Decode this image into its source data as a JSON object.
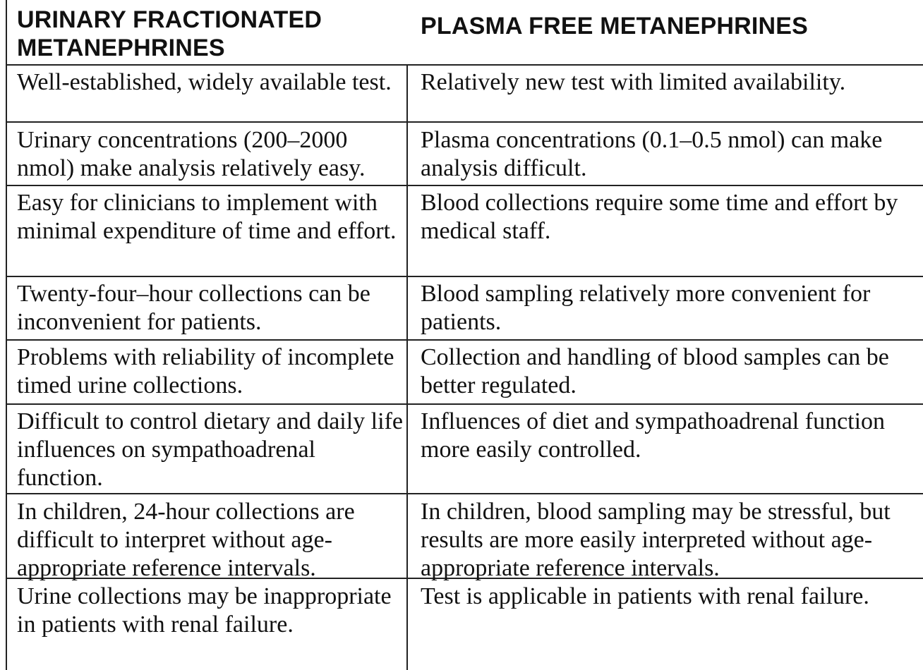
{
  "table": {
    "headers": [
      "URINARY FRACTIONATED METANEPHRINES",
      "PLASMA FREE METANEPHRINES"
    ],
    "rows": [
      [
        "Well-established, widely available test.",
        "Relatively new test with limited availability."
      ],
      [
        "Urinary concentrations (200–2000 nmol) make analysis relatively easy.",
        "Plasma concentrations (0.1–0.5 nmol) can make analysis difficult."
      ],
      [
        "Easy for clinicians to implement with minimal expenditure of time and effort.",
        "Blood collections require some time and effort by medical staff."
      ],
      [
        "Twenty-four–hour collections can be inconvenient for patients.",
        "Blood sampling relatively more convenient for patients."
      ],
      [
        "Problems with reliability of incomplete timed urine collections.",
        "Collection and handling of blood samples can be better regulated."
      ],
      [
        "Difficult to control dietary and daily life influences on sympathoadrenal function.",
        "Influences of diet and sympathoadrenal function more easily controlled."
      ],
      [
        "In children, 24-hour collections are difficult to interpret without age-appropriate reference intervals.",
        "In children, blood sampling may be stressful, but results are more easily interpreted without age-appropriate reference intervals."
      ],
      [
        "Urine collections may be inappropriate in patients with renal failure.",
        "Test is applicable in patients with renal failure."
      ]
    ]
  }
}
